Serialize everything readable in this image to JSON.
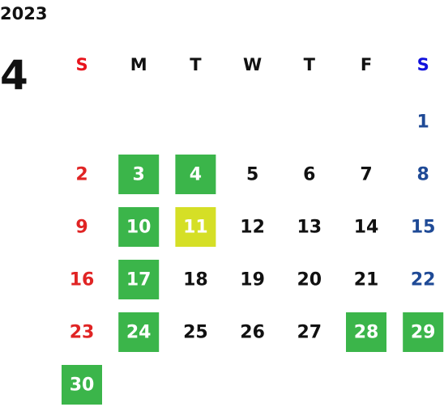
{
  "year": "2023",
  "month": "4",
  "weekdays": [
    "S",
    "M",
    "T",
    "W",
    "T",
    "F",
    "S"
  ],
  "weeks": [
    [
      null,
      null,
      null,
      null,
      null,
      null,
      {
        "day": 1
      }
    ],
    [
      {
        "day": 2
      },
      {
        "day": 3,
        "fill": "#3bb54a"
      },
      {
        "day": 4,
        "fill": "#3bb54a"
      },
      {
        "day": 5
      },
      {
        "day": 6
      },
      {
        "day": 7
      },
      {
        "day": 8
      }
    ],
    [
      {
        "day": 9
      },
      {
        "day": 10,
        "fill": "#3bb54a"
      },
      {
        "day": 11,
        "fill": "#d5df26"
      },
      {
        "day": 12
      },
      {
        "day": 13
      },
      {
        "day": 14
      },
      {
        "day": 15
      }
    ],
    [
      {
        "day": 16
      },
      {
        "day": 17,
        "fill": "#3bb54a"
      },
      {
        "day": 18
      },
      {
        "day": 19
      },
      {
        "day": 20
      },
      {
        "day": 21
      },
      {
        "day": 22
      }
    ],
    [
      {
        "day": 23
      },
      {
        "day": 24,
        "fill": "#3bb54a"
      },
      {
        "day": 25
      },
      {
        "day": 26
      },
      {
        "day": 27
      },
      {
        "day": 28,
        "fill": "#3bb54a"
      },
      {
        "day": 29,
        "fill": "#3bb54a"
      }
    ],
    [
      {
        "day": 30,
        "fill": "#3bb54a"
      },
      null,
      null,
      null,
      null,
      null,
      null
    ]
  ]
}
